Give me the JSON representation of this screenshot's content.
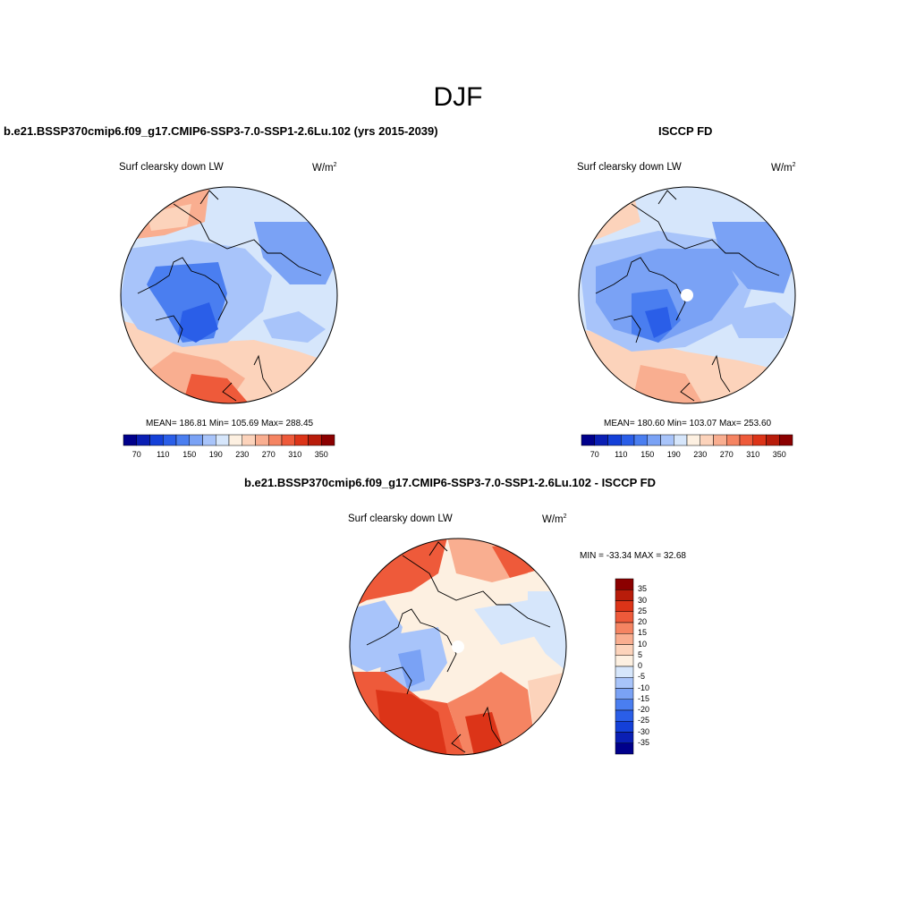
{
  "figure": {
    "season": "DJF",
    "panel1": {
      "title": "b.e21.BSSP370cmip6.f09_g17.CMIP6-SSP3-7.0-SSP1-2.6Lu.102 (yrs 2015-2039)",
      "variable": "Surf clearsky down LW",
      "units_base": "W/m",
      "units_exp": "2",
      "stats": "MEAN= 186.81  Min= 105.69  Max= 288.45"
    },
    "panel2": {
      "title": "ISCCP FD",
      "variable": "Surf clearsky down LW",
      "units_base": "W/m",
      "units_exp": "2",
      "stats": "MEAN= 180.60  Min= 103.07  Max= 253.60"
    },
    "panel3": {
      "title": "b.e21.BSSP370cmip6.f09_g17.CMIP6-SSP3-7.0-SSP1-2.6Lu.102 - ISCCP FD",
      "variable": "Surf clearsky down LW",
      "units_base": "W/m",
      "units_exp": "2",
      "stats": "MIN = -33.34 MAX =  32.68"
    }
  },
  "colorbar_abs": {
    "ticks": [
      "70",
      "110",
      "150",
      "190",
      "230",
      "270",
      "310",
      "350"
    ],
    "colors": [
      "#00008b",
      "#0a1fb4",
      "#1440d8",
      "#2a5ee8",
      "#4a7ef0",
      "#7aa2f5",
      "#a8c4fa",
      "#d6e6fb",
      "#fdf0e1",
      "#fcd3bb",
      "#f9ae90",
      "#f58462",
      "#ee5a3a",
      "#dc3418",
      "#b81c0a",
      "#8b0000"
    ]
  },
  "colorbar_diff": {
    "ticks": [
      "35",
      "30",
      "25",
      "20",
      "15",
      "10",
      "5",
      "0",
      "-5",
      "-10",
      "-15",
      "-20",
      "-25",
      "-30",
      "-35"
    ],
    "colors": [
      "#8b0000",
      "#b81c0a",
      "#dc3418",
      "#ee5a3a",
      "#f58462",
      "#f9ae90",
      "#fcd3bb",
      "#fdf0e1",
      "#d6e6fb",
      "#a8c4fa",
      "#7aa2f5",
      "#4a7ef0",
      "#2a5ee8",
      "#1440d8",
      "#0a1fb4",
      "#00008b"
    ]
  },
  "colors": {
    "ocean_warm": "#f7c6a8",
    "blue_light": "#cfe0fa",
    "blue_mid": "#6f98ef",
    "blue_dark": "#2f5fe6",
    "red_warm": "#ef6a44",
    "red_hot": "#d8401e"
  }
}
